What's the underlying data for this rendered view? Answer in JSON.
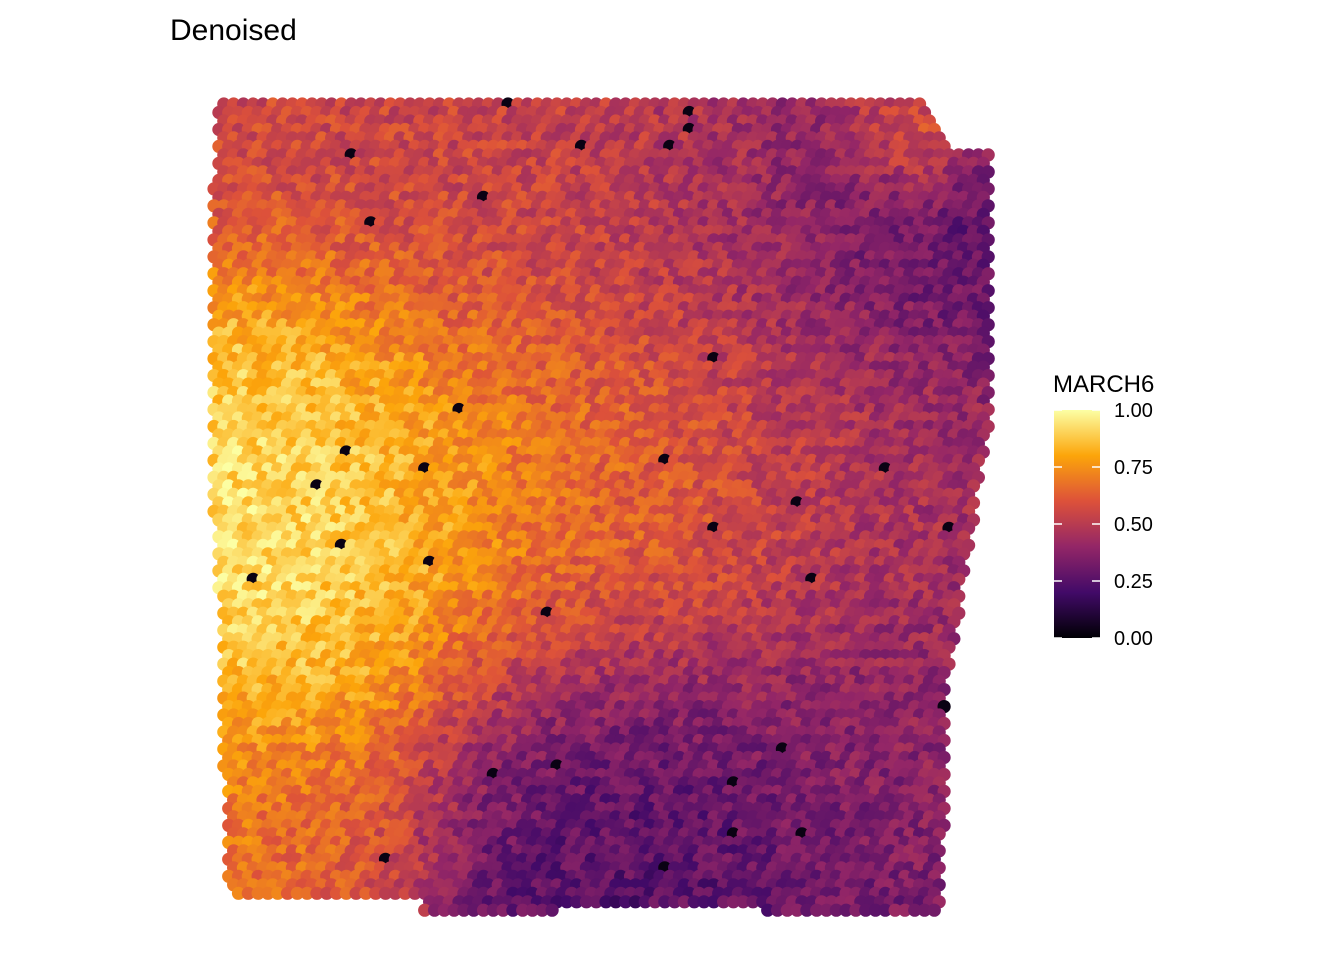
{
  "chart_data": {
    "type": "scatter",
    "title": "Denoised",
    "xlabel": "",
    "ylabel": "",
    "grid": false,
    "legend": {
      "title": "MARCH6",
      "position": "right",
      "range": [
        0,
        1
      ],
      "ticks": [
        0.0,
        0.25,
        0.5,
        0.75,
        1.0
      ],
      "tick_labels": [
        "0.00",
        "0.25",
        "0.50",
        "0.75",
        "1.00"
      ],
      "palette": "inferno",
      "colors": [
        "#000004",
        "#420a68",
        "#932667",
        "#dd513a",
        "#fca50a",
        "#fcffa4"
      ]
    },
    "fields": [
      {
        "x": 0.06,
        "y": 0.5,
        "value": 0.98,
        "radius": 0.12
      },
      {
        "x": 0.08,
        "y": 0.42,
        "value": 0.92,
        "radius": 0.12
      },
      {
        "x": 0.1,
        "y": 0.6,
        "value": 0.93,
        "radius": 0.12
      },
      {
        "x": 0.18,
        "y": 0.48,
        "value": 0.92,
        "radius": 0.14
      },
      {
        "x": 0.28,
        "y": 0.5,
        "value": 0.82,
        "radius": 0.14
      },
      {
        "x": 0.4,
        "y": 0.48,
        "value": 0.7,
        "radius": 0.15
      },
      {
        "x": 0.52,
        "y": 0.5,
        "value": 0.66,
        "radius": 0.13
      },
      {
        "x": 0.65,
        "y": 0.52,
        "value": 0.62,
        "radius": 0.14
      },
      {
        "x": 0.08,
        "y": 0.78,
        "value": 0.8,
        "radius": 0.1
      },
      {
        "x": 0.05,
        "y": 0.92,
        "value": 0.72,
        "radius": 0.08
      },
      {
        "x": 0.12,
        "y": 0.88,
        "value": 0.55,
        "radius": 0.1
      },
      {
        "x": 0.25,
        "y": 0.1,
        "value": 0.55,
        "radius": 0.2
      },
      {
        "x": 0.42,
        "y": 0.2,
        "value": 0.55,
        "radius": 0.15
      },
      {
        "x": 0.7,
        "y": 0.18,
        "value": 0.42,
        "radius": 0.18
      },
      {
        "x": 0.92,
        "y": 0.18,
        "value": 0.22,
        "radius": 0.12
      },
      {
        "x": 0.9,
        "y": 0.05,
        "value": 0.8,
        "radius": 0.05
      },
      {
        "x": 0.8,
        "y": 0.42,
        "value": 0.48,
        "radius": 0.12
      },
      {
        "x": 0.9,
        "y": 0.6,
        "value": 0.42,
        "radius": 0.15
      },
      {
        "x": 0.45,
        "y": 0.78,
        "value": 0.3,
        "radius": 0.15
      },
      {
        "x": 0.55,
        "y": 0.88,
        "value": 0.22,
        "radius": 0.12
      },
      {
        "x": 0.75,
        "y": 0.85,
        "value": 0.3,
        "radius": 0.14
      },
      {
        "x": 0.85,
        "y": 0.8,
        "value": 0.4,
        "radius": 0.1
      }
    ]
  }
}
